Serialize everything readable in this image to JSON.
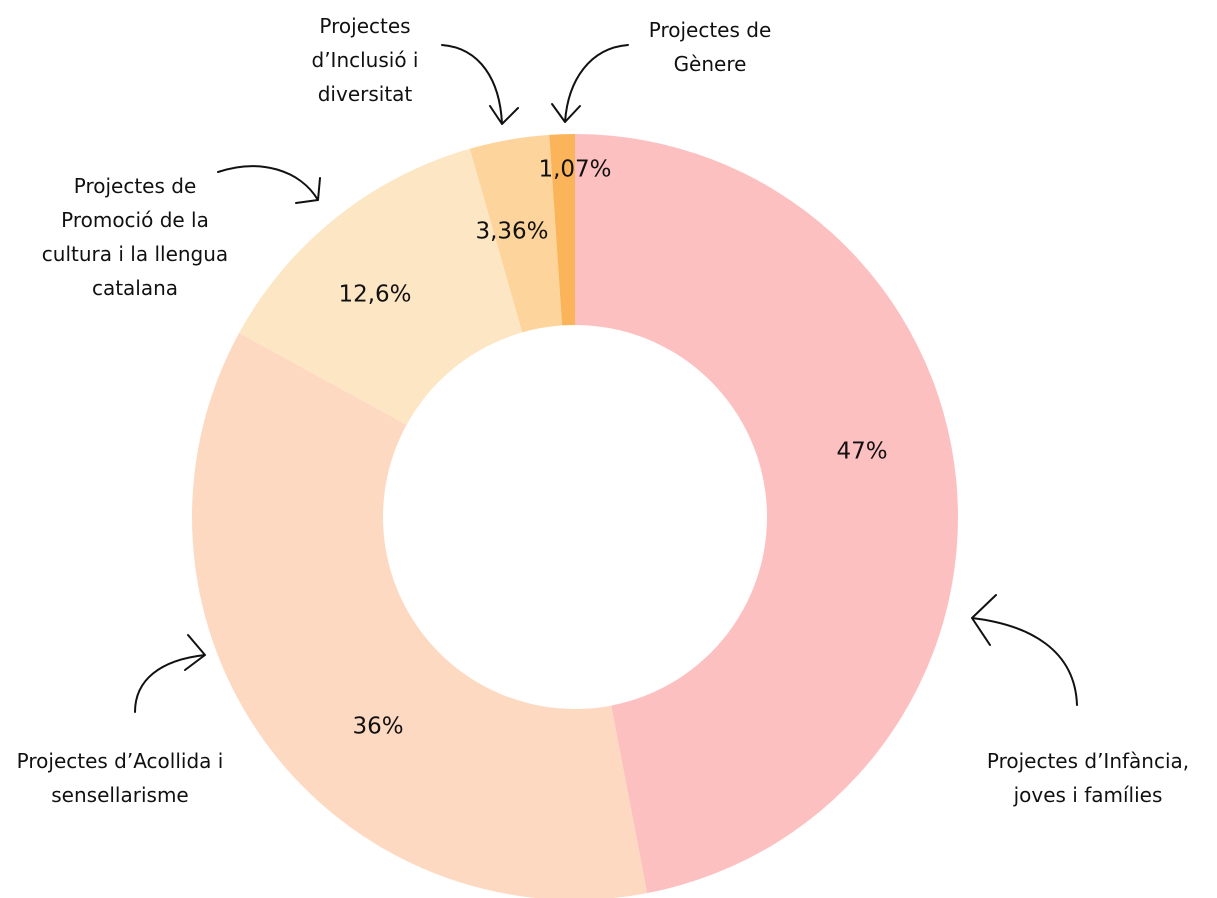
{
  "chart_data": {
    "type": "donut",
    "categories": [
      "Projectes d’Infància, joves i famílies",
      "Projectes d’Acollida i sensellarisme",
      "Projectes de Promoció de la cultura i la llengua catalana",
      "Projectes d’Inclusió i diversitat",
      "Projectes de Gènere"
    ],
    "values": [
      47,
      36,
      12.6,
      3.36,
      1.07
    ],
    "value_labels": [
      "47%",
      "36%",
      "12,6%",
      "3,36%",
      "1,07%"
    ],
    "colors": [
      "#fdc0c0",
      "#fed9c2",
      "#fde6c4",
      "#fdd59c",
      "#fbb45a"
    ]
  }
}
